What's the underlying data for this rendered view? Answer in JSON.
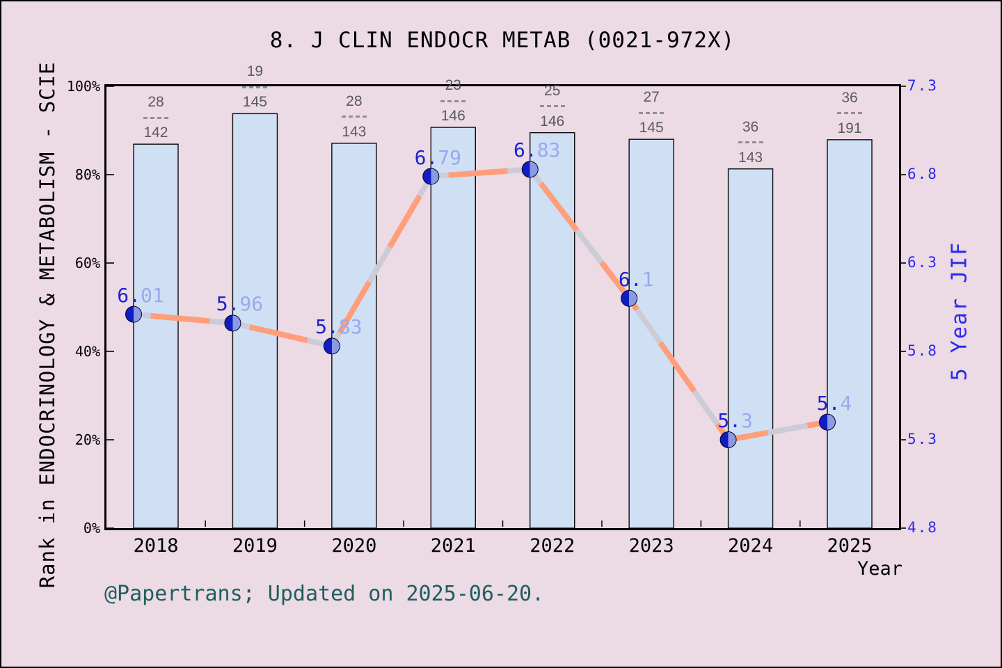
{
  "chart_data": {
    "type": "bar",
    "title": "8. J CLIN ENDOCR METAB (0021-972X)",
    "footer": "@Papertrans; Updated on 2025-06-20.",
    "x_axis": {
      "label": "Year",
      "categories": [
        "2018",
        "2019",
        "2020",
        "2021",
        "2022",
        "2023",
        "2024",
        "2025"
      ]
    },
    "left_axis": {
      "label": "Rank in ENDOCRINOLOGY & METABOLISM - SCIE",
      "ticks": [
        "0%",
        "20%",
        "40%",
        "60%",
        "80%",
        "100%"
      ],
      "range": [
        0,
        100
      ]
    },
    "right_axis": {
      "label": "5 Year JIF",
      "ticks": [
        "4.8",
        "5.3",
        "5.8",
        "6.3",
        "6.8",
        "7.3"
      ],
      "range": [
        4.8,
        7.3
      ]
    },
    "bars": {
      "name": "Rank in category (percentile)",
      "values_pct": [
        86.9,
        93.8,
        87.1,
        90.7,
        89.5,
        88.0,
        81.3,
        87.9
      ],
      "labels": [
        {
          "num": "28",
          "den": "142"
        },
        {
          "num": "19",
          "den": "145"
        },
        {
          "num": "28",
          "den": "143"
        },
        {
          "num": "23",
          "den": "146"
        },
        {
          "num": "25",
          "den": "146"
        },
        {
          "num": "27",
          "den": "145"
        },
        {
          "num": "36",
          "den": "143"
        },
        {
          "num": "36",
          "den": "191"
        }
      ]
    },
    "line": {
      "name": "5 Year JIF",
      "values": [
        6.01,
        5.96,
        5.83,
        6.79,
        6.83,
        6.1,
        5.3,
        5.4
      ],
      "labels": [
        "6.01",
        "5.96",
        "5.83",
        "6.79",
        "6.83",
        "6.1",
        "5.3",
        "5.4"
      ]
    },
    "legend": "none",
    "grid": "off",
    "colors": {
      "background": "#ecdae4",
      "plot_background": "#ffffff",
      "frame": "#000000",
      "bar_fill": "#cfe0f5",
      "bar_edge": "#0a0a0a",
      "line_gray": "#ccccd6",
      "line_orange": "#ff9e78",
      "marker_dark": "#111dc4",
      "marker_light": "#8a9ae4",
      "value_dark": "#1a23cc",
      "value_light": "#9aa9ec",
      "right_axis_blue": "#2a2aee",
      "fraction_gray": "#5a5a5a",
      "footer_teal": "#1e5f5f"
    }
  }
}
